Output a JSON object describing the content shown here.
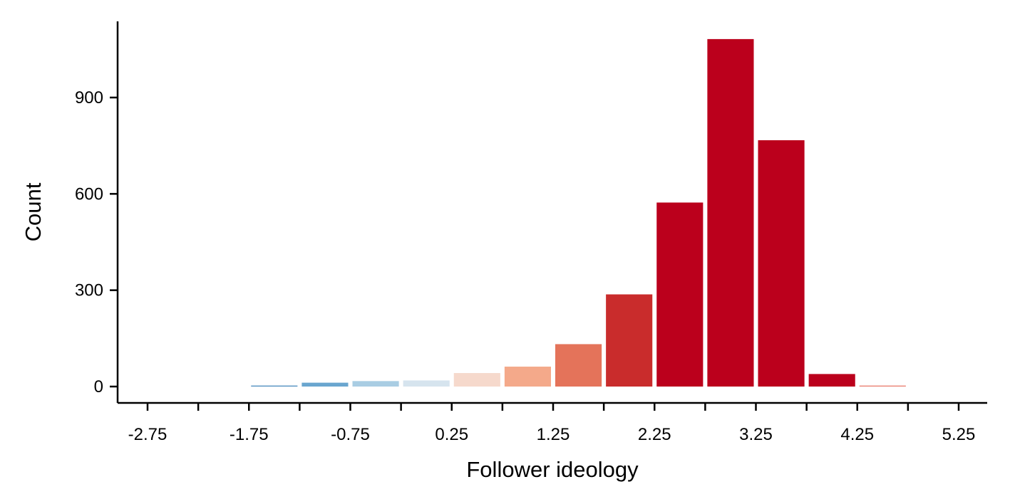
{
  "chart_data": {
    "type": "bar",
    "title": "",
    "xlabel": "Follower ideology",
    "ylabel": "Count",
    "x_ticks": [
      "-2.75",
      "-1.75",
      "-0.75",
      "0.25",
      "1.25",
      "2.25",
      "3.25",
      "4.25",
      "5.25"
    ],
    "y_ticks": [
      "0",
      "300",
      "600",
      "900"
    ],
    "xlim": [
      -3.0,
      5.5
    ],
    "ylim": [
      -50,
      1130
    ],
    "bin_width": 0.5,
    "bins": [
      {
        "center": -1.5,
        "value": 3,
        "color": "#4f8fc0"
      },
      {
        "center": -1.0,
        "value": 12,
        "color": "#6aa6cf"
      },
      {
        "center": -0.5,
        "value": 17,
        "color": "#a9cde3"
      },
      {
        "center": 0.0,
        "value": 19,
        "color": "#d6e4ee"
      },
      {
        "center": 0.5,
        "value": 42,
        "color": "#f6d9cc"
      },
      {
        "center": 1.0,
        "value": 62,
        "color": "#f4a98a"
      },
      {
        "center": 1.5,
        "value": 132,
        "color": "#e4735a"
      },
      {
        "center": 2.0,
        "value": 287,
        "color": "#c92c2c"
      },
      {
        "center": 2.5,
        "value": 573,
        "color": "#bb001c"
      },
      {
        "center": 3.0,
        "value": 1082,
        "color": "#bb001c"
      },
      {
        "center": 3.5,
        "value": 767,
        "color": "#bb001c"
      },
      {
        "center": 4.0,
        "value": 39,
        "color": "#bb001c"
      },
      {
        "center": 4.5,
        "value": 3,
        "color": "#e97f70"
      }
    ],
    "grid": false,
    "legend": "none"
  }
}
